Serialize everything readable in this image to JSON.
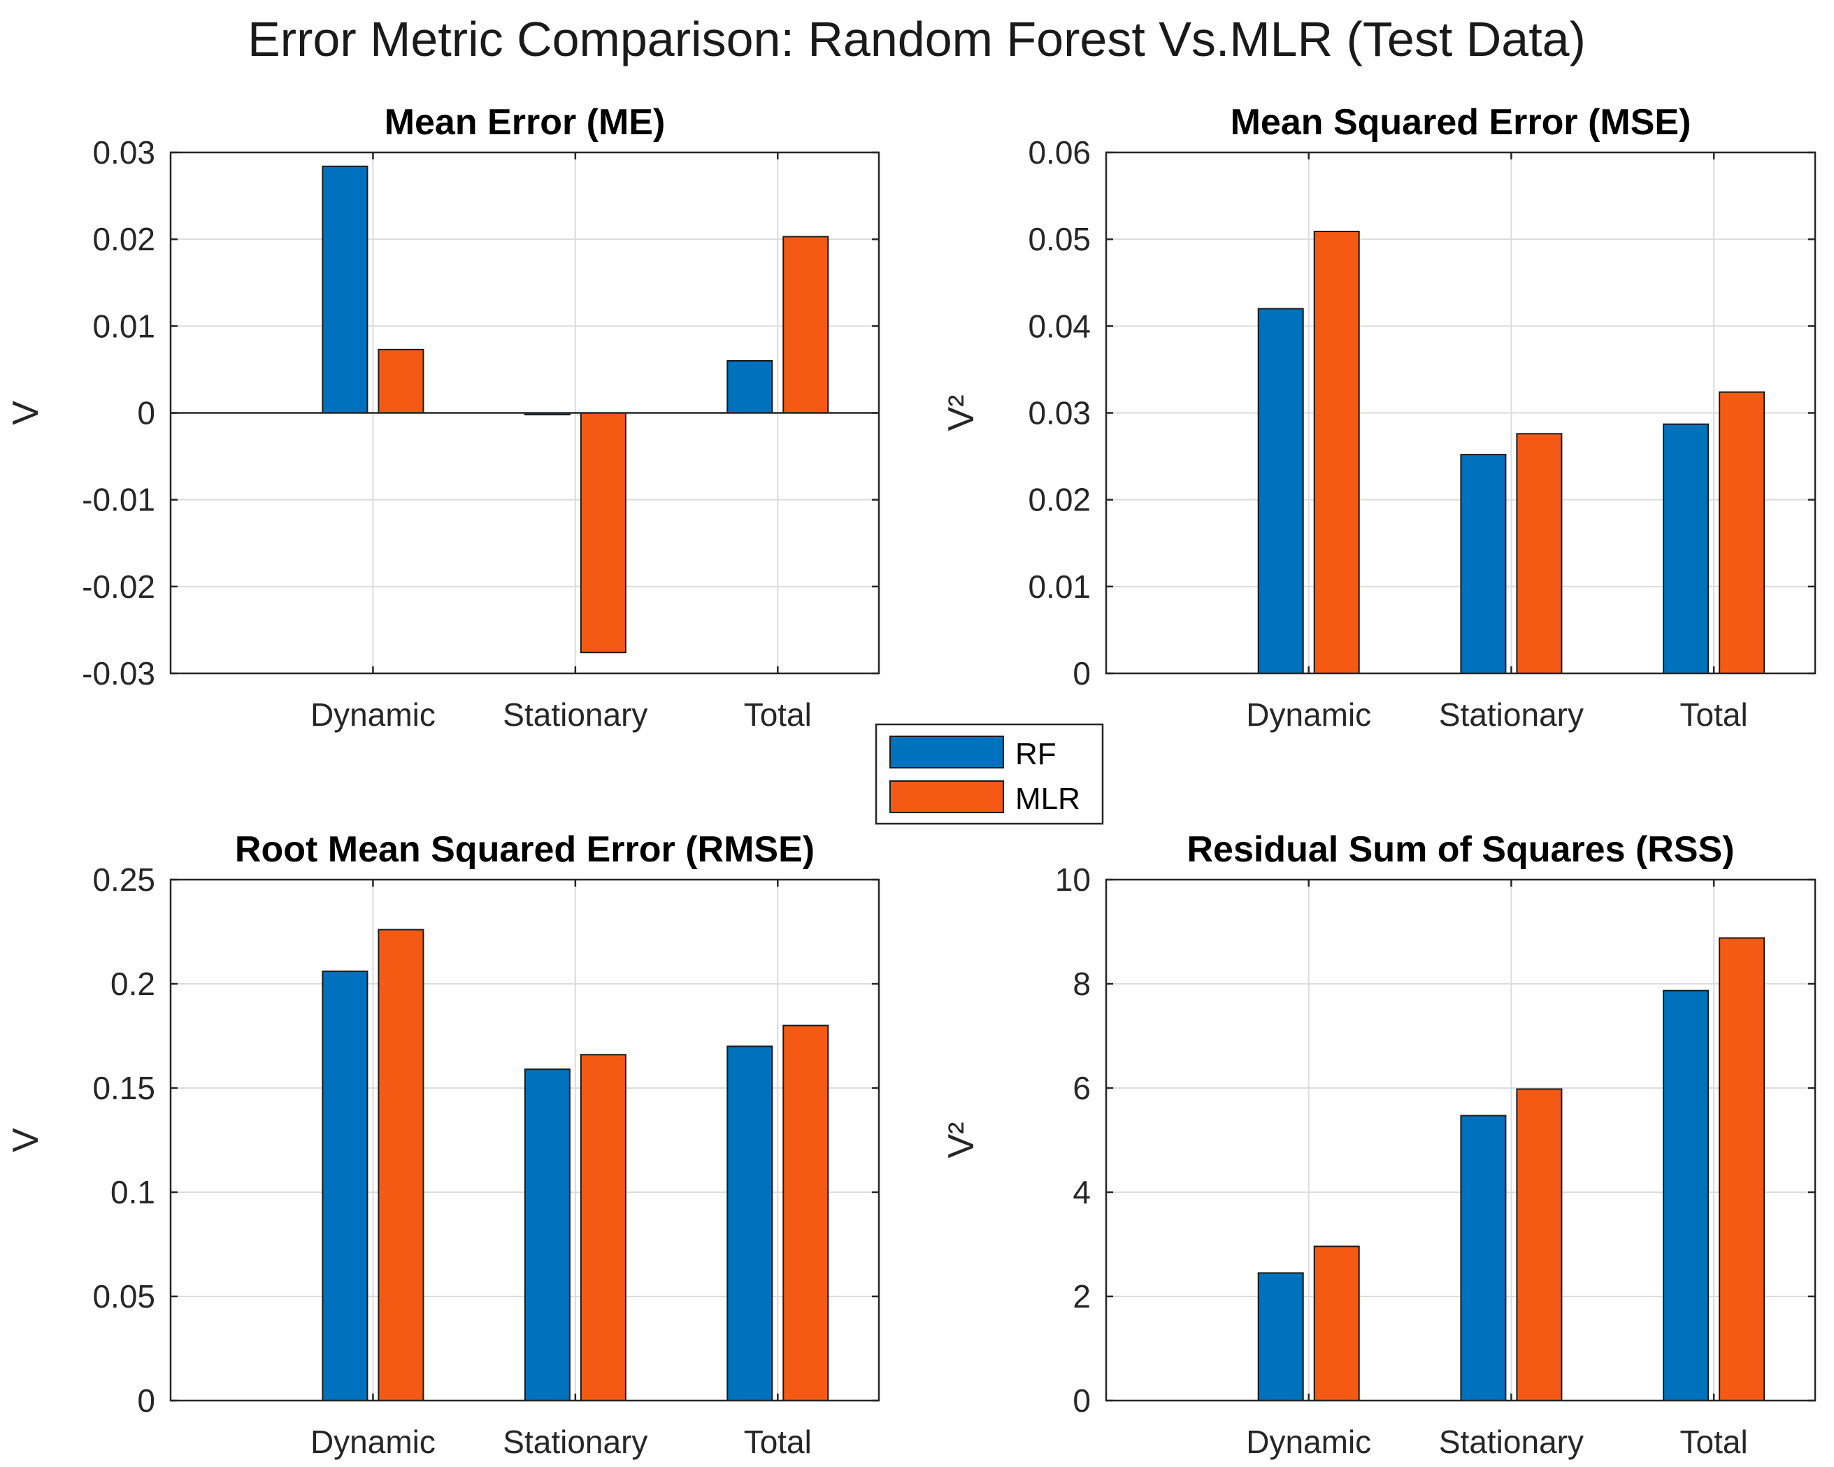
{
  "figure_title": "Error Metric Comparison: Random Forest Vs.MLR (Test Data)",
  "colors": {
    "RF": "#0072BD",
    "MLR": "#F55A14"
  },
  "legend": {
    "entries": [
      "RF",
      "MLR"
    ],
    "placement": "center"
  },
  "chart_data": [
    {
      "id": "me",
      "type": "bar",
      "title": "Mean Error (ME)",
      "xlabel": "",
      "ylabel": "V",
      "categories": [
        "Dynamic",
        "Stationary",
        "Total"
      ],
      "series": [
        {
          "name": "RF",
          "values": [
            0.0284,
            -0.0002,
            0.006
          ]
        },
        {
          "name": "MLR",
          "values": [
            0.0073,
            -0.0276,
            0.0203
          ]
        }
      ],
      "ylim": [
        -0.03,
        0.03
      ],
      "yticks": [
        -0.03,
        -0.02,
        -0.01,
        0,
        0.01,
        0.02,
        0.03
      ],
      "ytick_labels": [
        "-0.03",
        "-0.02",
        "-0.01",
        "0",
        "0.01",
        "0.02",
        "0.03"
      ],
      "grid": true
    },
    {
      "id": "mse",
      "type": "bar",
      "title": "Mean Squared Error (MSE)",
      "xlabel": "",
      "ylabel": "V²",
      "categories": [
        "Dynamic",
        "Stationary",
        "Total"
      ],
      "series": [
        {
          "name": "RF",
          "values": [
            0.042,
            0.0252,
            0.0287
          ]
        },
        {
          "name": "MLR",
          "values": [
            0.0509,
            0.0276,
            0.0324
          ]
        }
      ],
      "ylim": [
        0,
        0.06
      ],
      "yticks": [
        0,
        0.01,
        0.02,
        0.03,
        0.04,
        0.05,
        0.06
      ],
      "ytick_labels": [
        "0",
        "0.01",
        "0.02",
        "0.03",
        "0.04",
        "0.05",
        "0.06"
      ],
      "grid": true
    },
    {
      "id": "rmse",
      "type": "bar",
      "title": "Root Mean Squared Error (RMSE)",
      "xlabel": "",
      "ylabel": "V",
      "categories": [
        "Dynamic",
        "Stationary",
        "Total"
      ],
      "series": [
        {
          "name": "RF",
          "values": [
            0.206,
            0.159,
            0.17
          ]
        },
        {
          "name": "MLR",
          "values": [
            0.226,
            0.166,
            0.18
          ]
        }
      ],
      "ylim": [
        0,
        0.25
      ],
      "yticks": [
        0,
        0.05,
        0.1,
        0.15,
        0.2,
        0.25
      ],
      "ytick_labels": [
        "0",
        "0.05",
        "0.1",
        "0.15",
        "0.2",
        "0.25"
      ],
      "grid": true
    },
    {
      "id": "rss",
      "type": "bar",
      "title": "Residual Sum of Squares (RSS)",
      "xlabel": "",
      "ylabel": "V²",
      "categories": [
        "Dynamic",
        "Stationary",
        "Total"
      ],
      "series": [
        {
          "name": "RF",
          "values": [
            2.45,
            5.47,
            7.87
          ]
        },
        {
          "name": "MLR",
          "values": [
            2.96,
            5.98,
            8.88
          ]
        }
      ],
      "ylim": [
        0,
        10
      ],
      "yticks": [
        0,
        2,
        4,
        6,
        8,
        10
      ],
      "ytick_labels": [
        "0",
        "2",
        "4",
        "6",
        "8",
        "10"
      ],
      "grid": true
    }
  ]
}
